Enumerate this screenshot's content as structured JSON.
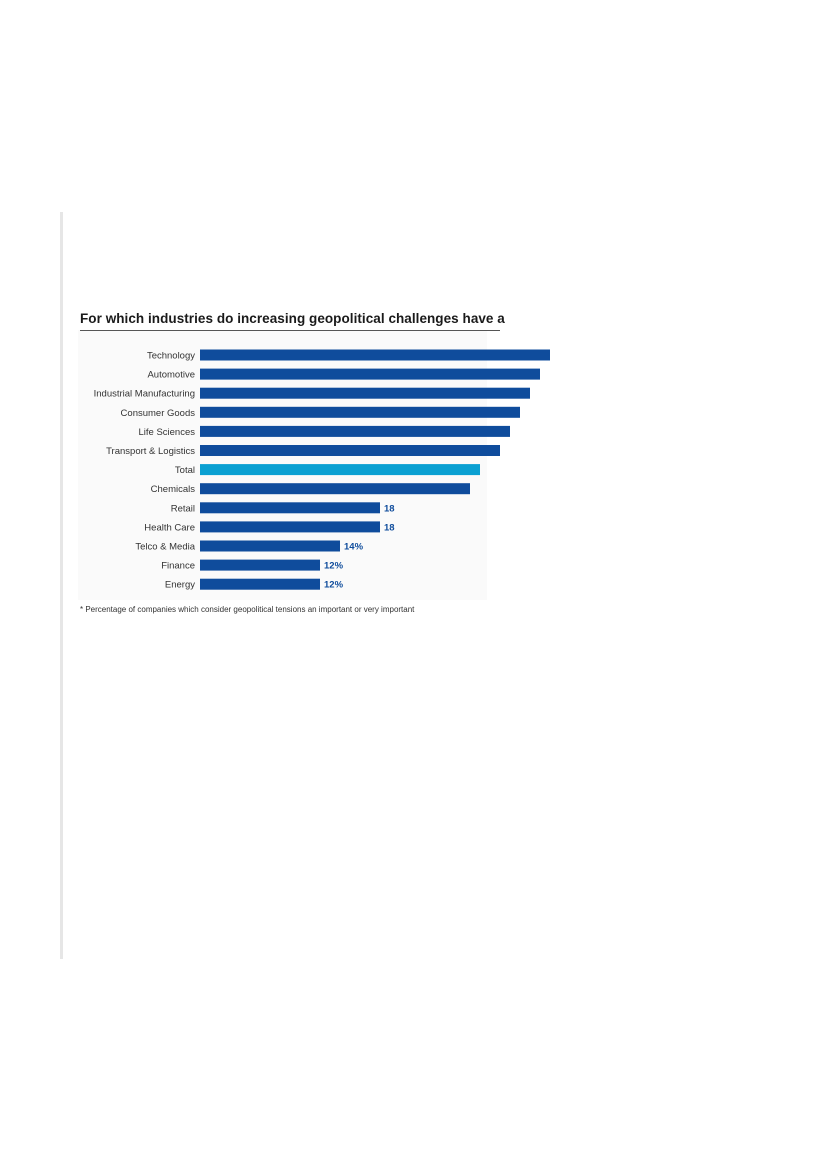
{
  "chart_data": {
    "type": "bar",
    "orientation": "horizontal",
    "title": "For which industries do increasing geopolitical challenges have a",
    "footnote": "* Percentage of companies which consider geopolitical tensions an important or very important",
    "categories": [
      "Technology",
      "Automotive",
      "Industrial Manufacturing",
      "Consumer Goods",
      "Life Sciences",
      "Transport & Logistics",
      "Total",
      "Chemicals",
      "Retail",
      "Health Care",
      "Telco & Media",
      "Finance",
      "Energy"
    ],
    "values": [
      35,
      34,
      33,
      32,
      31,
      30,
      28,
      27,
      18,
      18,
      14,
      12,
      12
    ],
    "value_labels": [
      "",
      "",
      "",
      "",
      "",
      "",
      "",
      "",
      "18",
      "18",
      "14%",
      "12%",
      "12%"
    ],
    "highlight": "Total",
    "xlim": [
      0,
      35
    ],
    "grid": false
  },
  "colors": {
    "bar": "#0f4c9c",
    "highlight": "#0aa0d2",
    "value_label": "#0f4c9c"
  }
}
